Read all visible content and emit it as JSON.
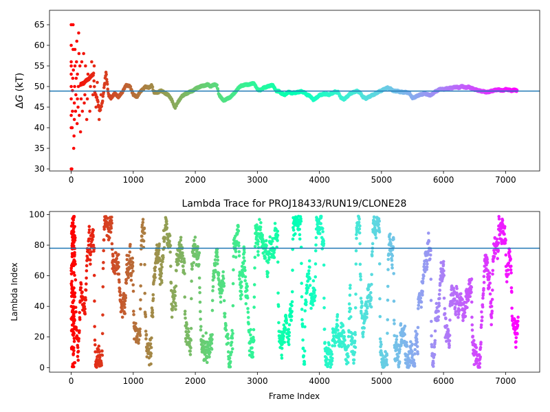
{
  "chart_data": [
    {
      "type": "scatter",
      "title": "",
      "xlabel": "",
      "ylabel": "ΔG (kT)",
      "ylabel_italic_part": "G",
      "xlim": [
        -350,
        7550
      ],
      "ylim": [
        29.5,
        68.5
      ],
      "xticks": [
        0,
        1000,
        2000,
        3000,
        4000,
        5000,
        6000,
        7000
      ],
      "yticks": [
        30,
        35,
        40,
        45,
        50,
        55,
        60,
        65
      ],
      "hline": {
        "y": 48.9,
        "color": "#1f77b4"
      },
      "colormap": "rainbow (reversed over frame index: red at 0, violet at 7200)",
      "n_frames": 7200,
      "trace": [
        [
          150,
          50.5
        ],
        [
          200,
          50.8
        ],
        [
          240,
          51.5
        ],
        [
          280,
          51.8
        ],
        [
          320,
          52.5
        ],
        [
          360,
          53.0
        ],
        [
          380,
          48.5
        ],
        [
          420,
          47.0
        ],
        [
          460,
          44.0
        ],
        [
          500,
          46.0
        ],
        [
          540,
          51.0
        ],
        [
          560,
          53.5
        ],
        [
          600,
          48.0
        ],
        [
          640,
          47.2
        ],
        [
          700,
          48.3
        ],
        [
          760,
          47.5
        ],
        [
          820,
          48.5
        ],
        [
          880,
          50.3
        ],
        [
          950,
          50.0
        ],
        [
          1000,
          48.0
        ],
        [
          1060,
          47.5
        ],
        [
          1100,
          48.5
        ],
        [
          1150,
          49.3
        ],
        [
          1200,
          50.0
        ],
        [
          1250,
          49.7
        ],
        [
          1300,
          50.3
        ],
        [
          1330,
          48.6
        ],
        [
          1400,
          48.6
        ],
        [
          1450,
          49.0
        ],
        [
          1500,
          48.5
        ],
        [
          1560,
          48.0
        ],
        [
          1620,
          46.8
        ],
        [
          1670,
          44.8
        ],
        [
          1720,
          46.2
        ],
        [
          1780,
          47.6
        ],
        [
          1820,
          48.0
        ],
        [
          1900,
          48.6
        ],
        [
          1960,
          49.0
        ],
        [
          2020,
          49.6
        ],
        [
          2080,
          50.0
        ],
        [
          2140,
          50.2
        ],
        [
          2200,
          50.5
        ],
        [
          2250,
          50.0
        ],
        [
          2300,
          50.5
        ],
        [
          2350,
          50.2
        ],
        [
          2380,
          48.0
        ],
        [
          2450,
          46.6
        ],
        [
          2500,
          46.9
        ],
        [
          2560,
          47.4
        ],
        [
          2620,
          48.2
        ],
        [
          2680,
          49.4
        ],
        [
          2740,
          50.2
        ],
        [
          2800,
          50.4
        ],
        [
          2860,
          50.5
        ],
        [
          2900,
          50.7
        ],
        [
          2950,
          50.7
        ],
        [
          3000,
          49.3
        ],
        [
          3050,
          49.1
        ],
        [
          3100,
          49.7
        ],
        [
          3150,
          49.9
        ],
        [
          3200,
          50.2
        ],
        [
          3250,
          50.3
        ],
        [
          3300,
          49.0
        ],
        [
          3350,
          48.8
        ],
        [
          3400,
          48.2
        ],
        [
          3450,
          48.0
        ],
        [
          3500,
          48.7
        ],
        [
          3550,
          48.4
        ],
        [
          3600,
          48.5
        ],
        [
          3650,
          48.6
        ],
        [
          3700,
          48.8
        ],
        [
          3750,
          48.6
        ],
        [
          3800,
          48.0
        ],
        [
          3850,
          47.7
        ],
        [
          3900,
          46.8
        ],
        [
          3950,
          47.2
        ],
        [
          4000,
          47.9
        ],
        [
          4050,
          48.1
        ],
        [
          4100,
          48.2
        ],
        [
          4150,
          48.0
        ],
        [
          4200,
          48.3
        ],
        [
          4250,
          48.7
        ],
        [
          4300,
          48.6
        ],
        [
          4350,
          47.2
        ],
        [
          4400,
          46.9
        ],
        [
          4450,
          47.6
        ],
        [
          4500,
          48.3
        ],
        [
          4550,
          48.6
        ],
        [
          4600,
          48.9
        ],
        [
          4650,
          48.6
        ],
        [
          4700,
          47.5
        ],
        [
          4750,
          47.1
        ],
        [
          4800,
          47.5
        ],
        [
          4850,
          47.9
        ],
        [
          4900,
          48.2
        ],
        [
          4950,
          48.7
        ],
        [
          5000,
          49.0
        ],
        [
          5050,
          49.4
        ],
        [
          5100,
          49.7
        ],
        [
          5150,
          49.4
        ],
        [
          5200,
          48.9
        ],
        [
          5250,
          48.9
        ],
        [
          5300,
          48.7
        ],
        [
          5350,
          48.6
        ],
        [
          5400,
          48.6
        ],
        [
          5450,
          48.4
        ],
        [
          5500,
          47.2
        ],
        [
          5550,
          47.5
        ],
        [
          5600,
          47.9
        ],
        [
          5650,
          48.1
        ],
        [
          5700,
          48.3
        ],
        [
          5750,
          48.0
        ],
        [
          5800,
          47.9
        ],
        [
          5850,
          48.6
        ],
        [
          5900,
          49.0
        ],
        [
          5950,
          49.4
        ],
        [
          6000,
          49.3
        ],
        [
          6050,
          49.5
        ],
        [
          6100,
          49.6
        ],
        [
          6150,
          49.7
        ],
        [
          6200,
          49.9
        ],
        [
          6250,
          49.7
        ],
        [
          6300,
          50.1
        ],
        [
          6350,
          49.7
        ],
        [
          6400,
          49.9
        ],
        [
          6450,
          49.6
        ],
        [
          6500,
          49.3
        ],
        [
          6550,
          49.1
        ],
        [
          6600,
          48.9
        ],
        [
          6650,
          48.8
        ],
        [
          6700,
          48.6
        ],
        [
          6750,
          48.8
        ],
        [
          6800,
          49.0
        ],
        [
          6850,
          49.2
        ],
        [
          6900,
          49.2
        ],
        [
          6950,
          49.0
        ],
        [
          7000,
          49.3
        ],
        [
          7050,
          49.2
        ],
        [
          7100,
          49.0
        ],
        [
          7150,
          49.2
        ],
        [
          7190,
          49.0
        ]
      ],
      "early_points": [
        [
          0,
          30
        ],
        [
          0,
          40
        ],
        [
          0,
          43
        ],
        [
          0,
          47
        ],
        [
          0,
          50
        ],
        [
          0,
          53
        ],
        [
          0,
          55
        ],
        [
          0,
          56
        ],
        [
          0,
          60
        ],
        [
          0,
          65
        ],
        [
          10,
          30
        ],
        [
          15,
          40
        ],
        [
          20,
          44
        ],
        [
          20,
          49
        ],
        [
          25,
          52
        ],
        [
          30,
          59
        ],
        [
          30,
          65
        ],
        [
          35,
          54
        ],
        [
          40,
          35
        ],
        [
          45,
          38
        ],
        [
          50,
          42
        ],
        [
          50,
          46
        ],
        [
          55,
          50
        ],
        [
          60,
          55
        ],
        [
          60,
          59
        ],
        [
          70,
          44
        ],
        [
          75,
          48
        ],
        [
          80,
          52
        ],
        [
          85,
          56
        ],
        [
          90,
          61
        ],
        [
          95,
          41
        ],
        [
          100,
          47
        ],
        [
          100,
          53
        ],
        [
          110,
          45
        ],
        [
          115,
          50
        ],
        [
          120,
          63
        ],
        [
          125,
          58
        ],
        [
          130,
          43
        ],
        [
          140,
          55
        ],
        [
          150,
          39
        ],
        [
          160,
          47
        ],
        [
          170,
          56
        ],
        [
          180,
          44
        ],
        [
          190,
          51
        ],
        [
          200,
          58
        ],
        [
          210,
          46
        ],
        [
          220,
          48
        ],
        [
          230,
          55
        ],
        [
          250,
          42
        ],
        [
          260,
          47
        ],
        [
          270,
          53
        ],
        [
          300,
          44
        ],
        [
          310,
          50
        ],
        [
          330,
          56
        ],
        [
          350,
          48
        ],
        [
          370,
          55
        ],
        [
          400,
          45
        ],
        [
          420,
          51
        ],
        [
          450,
          42
        ],
        [
          480,
          48
        ]
      ]
    },
    {
      "type": "scatter",
      "title": "Lambda Trace for PROJ18433/RUN19/CLONE28",
      "xlabel": "Frame Index",
      "ylabel": "Lambda Index",
      "xlim": [
        -350,
        7550
      ],
      "ylim": [
        -3,
        102
      ],
      "xticks": [
        0,
        1000,
        2000,
        3000,
        4000,
        5000,
        6000,
        7000
      ],
      "yticks": [
        0,
        20,
        40,
        60,
        80,
        100
      ],
      "hline": {
        "y": 78,
        "color": "#1f77b4"
      },
      "colormap": "rainbow (reversed over frame index: red at 0, violet at 7200)",
      "n_frames": 7200,
      "lambda_range": [
        0,
        99
      ],
      "note_points": "dense random-walk of lambda index 0–99 across all 7200 frames; points drawn by script"
    }
  ]
}
